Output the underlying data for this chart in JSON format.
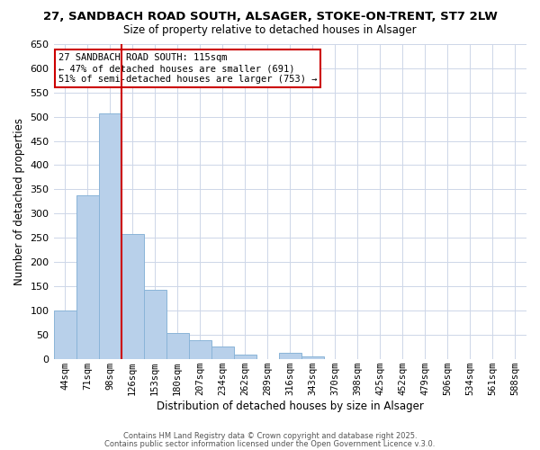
{
  "title1": "27, SANDBACH ROAD SOUTH, ALSAGER, STOKE-ON-TRENT, ST7 2LW",
  "title2": "Size of property relative to detached houses in Alsager",
  "xlabel": "Distribution of detached houses by size in Alsager",
  "ylabel": "Number of detached properties",
  "categories": [
    "44sqm",
    "71sqm",
    "98sqm",
    "126sqm",
    "153sqm",
    "180sqm",
    "207sqm",
    "234sqm",
    "262sqm",
    "289sqm",
    "316sqm",
    "343sqm",
    "370sqm",
    "398sqm",
    "425sqm",
    "452sqm",
    "479sqm",
    "506sqm",
    "534sqm",
    "561sqm",
    "588sqm"
  ],
  "values": [
    100,
    338,
    507,
    257,
    142,
    54,
    39,
    25,
    8,
    0,
    12,
    5,
    0,
    0,
    0,
    0,
    0,
    0,
    0,
    0,
    0
  ],
  "bar_color": "#b8d0ea",
  "bar_edge_color": "#8ab4d8",
  "vline_x_index": 2,
  "vline_color": "#cc0000",
  "annotation_title": "27 SANDBACH ROAD SOUTH: 115sqm",
  "annotation_line1": "← 47% of detached houses are smaller (691)",
  "annotation_line2": "51% of semi-detached houses are larger (753) →",
  "annotation_box_color": "#cc0000",
  "ylim": [
    0,
    650
  ],
  "yticks": [
    0,
    50,
    100,
    150,
    200,
    250,
    300,
    350,
    400,
    450,
    500,
    550,
    600,
    650
  ],
  "footer1": "Contains HM Land Registry data © Crown copyright and database right 2025.",
  "footer2": "Contains public sector information licensed under the Open Government Licence v.3.0.",
  "background_color": "#ffffff",
  "grid_color": "#cdd6e8"
}
